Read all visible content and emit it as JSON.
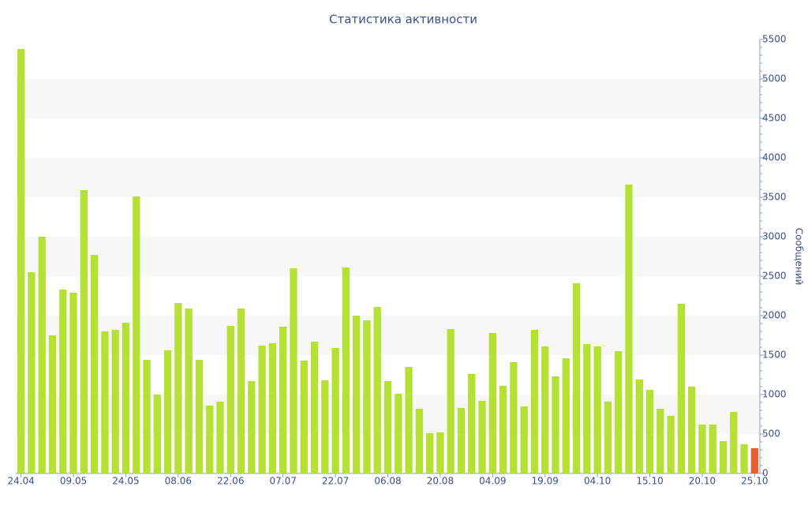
{
  "chart_data": {
    "type": "bar",
    "title": "Статистика активности",
    "y_label": "Сообщений",
    "categories": [
      "24.04",
      null,
      null,
      null,
      null,
      "09.05",
      null,
      null,
      null,
      null,
      "24.05",
      null,
      null,
      null,
      null,
      "08.06",
      null,
      null,
      null,
      null,
      "22.06",
      null,
      null,
      null,
      null,
      "07.07",
      null,
      null,
      null,
      null,
      "22.07",
      null,
      null,
      null,
      null,
      "06.08",
      null,
      null,
      null,
      null,
      "20.08",
      null,
      null,
      null,
      null,
      "04.09",
      null,
      null,
      null,
      null,
      "19.09",
      null,
      null,
      null,
      null,
      "04.10",
      null,
      null,
      null,
      null,
      "15.10",
      null,
      null,
      null,
      null,
      "20.10",
      null,
      null,
      null,
      null,
      "25.10"
    ],
    "values": [
      5380,
      2550,
      3000,
      1750,
      2330,
      2290,
      3590,
      2770,
      1800,
      1820,
      1910,
      3510,
      1440,
      1000,
      1560,
      2160,
      2090,
      1440,
      860,
      910,
      1870,
      2090,
      1170,
      1620,
      1650,
      1860,
      2600,
      1430,
      1670,
      1180,
      1590,
      2610,
      2000,
      1940,
      2110,
      1170,
      1010,
      1350,
      820,
      510,
      520,
      1830,
      830,
      1260,
      920,
      1780,
      1110,
      1410,
      850,
      1820,
      1610,
      1230,
      1460,
      2410,
      1640,
      1610,
      910,
      1550,
      3660,
      1190,
      1060,
      820,
      730,
      2150,
      1100,
      620,
      620,
      410,
      780,
      370,
      320
    ],
    "color": "#b5e034",
    "last_color": "#e2612f",
    "ylim": [
      0,
      5500
    ],
    "yticks": [
      0,
      500,
      1000,
      1500,
      2000,
      2500,
      3000,
      3500,
      4000,
      4500,
      5000,
      5500
    ],
    "axis_side": "right",
    "band_color": "#f7f7f7"
  }
}
